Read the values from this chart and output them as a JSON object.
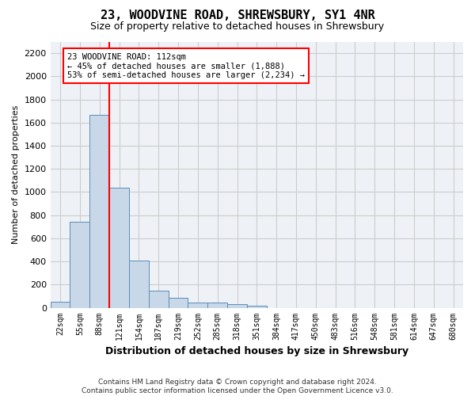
{
  "title": "23, WOODVINE ROAD, SHREWSBURY, SY1 4NR",
  "subtitle": "Size of property relative to detached houses in Shrewsbury",
  "xlabel": "Distribution of detached houses by size in Shrewsbury",
  "ylabel": "Number of detached properties",
  "bar_values": [
    50,
    745,
    1670,
    1035,
    405,
    150,
    85,
    48,
    42,
    28,
    18,
    0,
    0,
    0,
    0,
    0,
    0,
    0,
    0,
    0,
    0
  ],
  "bin_labels": [
    "22sqm",
    "55sqm",
    "88sqm",
    "121sqm",
    "154sqm",
    "187sqm",
    "219sqm",
    "252sqm",
    "285sqm",
    "318sqm",
    "351sqm",
    "384sqm",
    "417sqm",
    "450sqm",
    "483sqm",
    "516sqm",
    "548sqm",
    "581sqm",
    "614sqm",
    "647sqm",
    "680sqm"
  ],
  "bar_color": "#c8d8e8",
  "bar_edge_color": "#5b8db8",
  "grid_color": "#cccccc",
  "vline_color": "red",
  "vline_x": 2.5,
  "annotation_text": "23 WOODVINE ROAD: 112sqm\n← 45% of detached houses are smaller (1,888)\n53% of semi-detached houses are larger (2,234) →",
  "ylim": [
    0,
    2300
  ],
  "yticks": [
    0,
    200,
    400,
    600,
    800,
    1000,
    1200,
    1400,
    1600,
    1800,
    2000,
    2200
  ],
  "footer_text": "Contains HM Land Registry data © Crown copyright and database right 2024.\nContains public sector information licensed under the Open Government Licence v3.0.",
  "background_color": "#eef2f7"
}
